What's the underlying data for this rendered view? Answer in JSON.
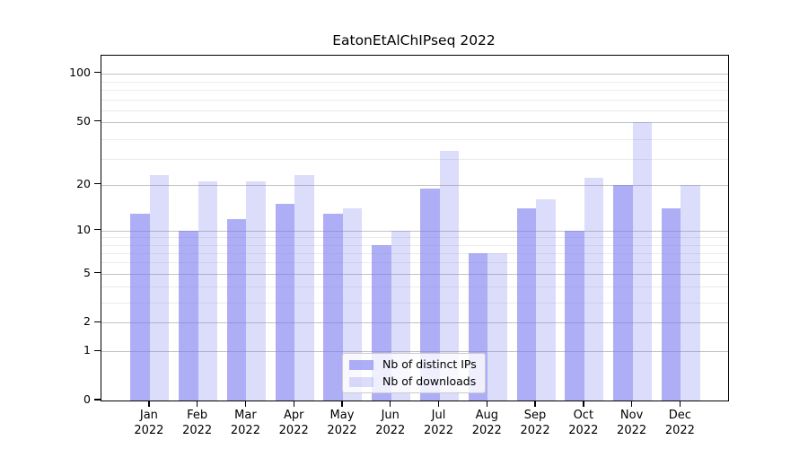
{
  "title": "EatonEtAlChIPseq 2022",
  "year": "2022",
  "colors": {
    "ips_fill": "rgba(120,120,240,0.60)",
    "downloads_fill": "rgba(120,120,240,0.26)",
    "grid_major": "#c3c3c3",
    "grid_minor": "#ebebeb",
    "axis": "#000000",
    "legend_border": "#cccccc"
  },
  "legend": {
    "items": [
      {
        "label": "Nb of distinct IPs",
        "series_key": "ips"
      },
      {
        "label": "Nb of downloads",
        "series_key": "downloads"
      }
    ]
  },
  "y_axis": {
    "tick_labels": [
      "0",
      "1",
      "2",
      "5",
      "10",
      "20",
      "50",
      "100"
    ],
    "tick_values": [
      0,
      1,
      2,
      5,
      10,
      20,
      50,
      100
    ]
  },
  "x_axis": {
    "months": [
      "Jan",
      "Feb",
      "Mar",
      "Apr",
      "May",
      "Jun",
      "Jul",
      "Aug",
      "Sep",
      "Oct",
      "Nov",
      "Dec"
    ]
  },
  "chart_data": {
    "type": "bar",
    "title": "EatonEtAlChIPseq 2022",
    "categories": [
      "Jan 2022",
      "Feb 2022",
      "Mar 2022",
      "Apr 2022",
      "May 2022",
      "Jun 2022",
      "Jul 2022",
      "Aug 2022",
      "Sep 2022",
      "Oct 2022",
      "Nov 2022",
      "Dec 2022"
    ],
    "series": [
      {
        "name": "Nb of distinct IPs",
        "values": [
          13,
          10,
          12,
          15,
          13,
          8,
          19,
          7,
          14,
          10,
          20,
          14
        ]
      },
      {
        "name": "Nb of downloads",
        "values": [
          23,
          21,
          21,
          23,
          14,
          10,
          33,
          7,
          16,
          22,
          50,
          20
        ]
      }
    ],
    "yscale": "log(1+x)",
    "yticks": [
      0,
      1,
      2,
      5,
      10,
      20,
      50,
      100
    ],
    "ylim": [
      0,
      126
    ],
    "grid": true,
    "legend_position": "lower center"
  }
}
